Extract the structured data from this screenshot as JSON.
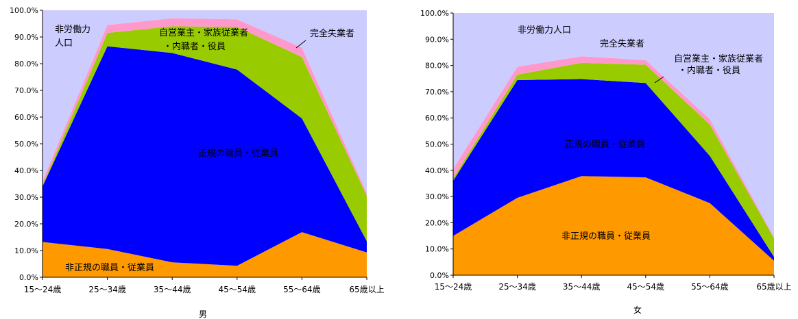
{
  "chart_data": [
    {
      "type": "area",
      "title": "男",
      "categories": [
        "15～24歳",
        "25～34歳",
        "35～44歳",
        "45～54歳",
        "55～64歳",
        "65歳以上"
      ],
      "ylim": [
        0,
        100
      ],
      "y_ticks": [
        "0.0%",
        "10.0%",
        "20.0%",
        "30.0%",
        "40.0%",
        "50.0%",
        "60.0%",
        "70.0%",
        "80.0%",
        "90.0%",
        "100.0%"
      ],
      "stacked": true,
      "series": [
        {
          "name": "非正規の職員・従業員",
          "values": [
            13.2,
            10.6,
            5.6,
            4.3,
            16.9,
            9.3
          ],
          "color": "#FF9900"
        },
        {
          "name": "正規の職員・従業員",
          "values": [
            20.8,
            75.9,
            78.4,
            73.5,
            42.6,
            4.2
          ],
          "color": "#0000FF"
        },
        {
          "name": "自営業主・家族従業者・内職者・役員",
          "values": [
            0.5,
            5.0,
            10.0,
            16.0,
            23.0,
            17.0
          ],
          "color": "#99CC00"
        },
        {
          "name": "完全失業者",
          "values": [
            1.5,
            3.0,
            3.0,
            2.8,
            3.5,
            1.0
          ],
          "color": "#FF99CC"
        },
        {
          "name": "非労働力人口",
          "values": [
            64.0,
            5.5,
            3.0,
            3.4,
            14.0,
            68.5
          ],
          "color": "#CCCCFF"
        }
      ],
      "labels": [
        {
          "text": "非労働力",
          "series": 4
        },
        {
          "text": "人口",
          "series": 4
        },
        {
          "text": "自営業主・家族従業者",
          "series": 2
        },
        {
          "text": "・内職者・役員",
          "series": 2
        },
        {
          "text": "完全失業者",
          "series": 3
        },
        {
          "text": "正規の職員・従業員",
          "series": 1
        },
        {
          "text": "非正規の職員・従業員",
          "series": 0
        }
      ]
    },
    {
      "type": "area",
      "title": "女",
      "categories": [
        "15～24歳",
        "25～34歳",
        "35～44歳",
        "45～54歳",
        "55～64歳",
        "65歳以上"
      ],
      "ylim": [
        0,
        100
      ],
      "y_ticks": [
        "0.0%",
        "10.0%",
        "20.0%",
        "30.0%",
        "40.0%",
        "50.0%",
        "60.0%",
        "70.0%",
        "80.0%",
        "90.0%",
        "100.0%"
      ],
      "stacked": true,
      "series": [
        {
          "name": "非正規の職員・従業員",
          "values": [
            15.0,
            29.5,
            37.8,
            37.3,
            27.5,
            5.5
          ],
          "color": "#FF9900"
        },
        {
          "name": "正規の職員・従業員",
          "values": [
            21.0,
            44.9,
            37.0,
            36.0,
            18.0,
            1.5
          ],
          "color": "#0000FF"
        },
        {
          "name": "自営業主・家族従業者・内職者・役員",
          "values": [
            1.0,
            2.1,
            6.2,
            7.0,
            12.0,
            7.0
          ],
          "color": "#99CC00"
        },
        {
          "name": "完全失業者",
          "values": [
            3.5,
            3.0,
            2.5,
            1.7,
            2.0,
            0.5
          ],
          "color": "#FF99CC"
        },
        {
          "name": "非労働力人口",
          "values": [
            59.5,
            20.5,
            16.5,
            18.0,
            40.5,
            85.5
          ],
          "color": "#CCCCFF"
        }
      ],
      "labels": [
        {
          "text": "非労働力人口",
          "series": 4
        },
        {
          "text": "完全失業者",
          "series": 3
        },
        {
          "text": "自営業主・家族従業者",
          "series": 2
        },
        {
          "text": "・内職者・役員",
          "series": 2
        },
        {
          "text": "正規の職員・従業員",
          "series": 1
        },
        {
          "text": "非正規の職員・従業員",
          "series": 0
        }
      ]
    }
  ]
}
